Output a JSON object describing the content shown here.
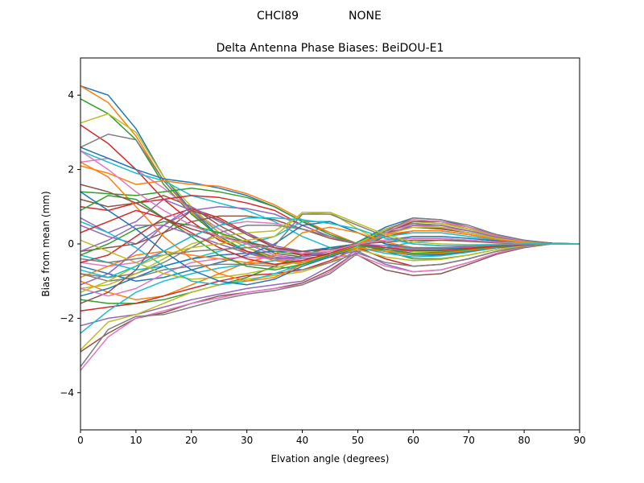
{
  "suptitle": {
    "station": "CHCI89",
    "radome": "NONE"
  },
  "chart_data": {
    "type": "line",
    "title": "Delta Antenna Phase Biases: BeiDOU-E1",
    "xlabel": "Elvation angle (degrees)",
    "ylabel": "Bias from mean (mm)",
    "xlim": [
      0,
      90
    ],
    "ylim": [
      -5,
      5
    ],
    "xticks": [
      0,
      10,
      20,
      30,
      40,
      50,
      60,
      70,
      80,
      90
    ],
    "yticks": [
      -4,
      -2,
      0,
      2,
      4
    ],
    "ytick_labels": [
      "−4",
      "−2",
      "0",
      "2",
      "4"
    ],
    "grid": false,
    "legend": "none",
    "colors": [
      "#1f77b4",
      "#ff7f0e",
      "#2ca02c",
      "#d62728",
      "#9467bd",
      "#8c564b",
      "#e377c2",
      "#7f7f7f",
      "#bcbd22",
      "#17becf"
    ],
    "x": [
      0,
      5,
      10,
      15,
      20,
      25,
      30,
      35,
      40,
      45,
      50,
      55,
      60,
      65,
      70,
      75,
      80,
      85,
      90
    ],
    "series": [
      {
        "values": [
          4.25,
          4.0,
          3.1,
          1.8,
          0.9,
          0.2,
          -0.2,
          -0.4,
          -0.55,
          -0.35,
          0.05,
          0.45,
          0.7,
          0.65,
          0.45,
          0.25,
          0.1,
          0.02,
          0.0
        ]
      },
      {
        "values": [
          4.25,
          3.8,
          2.9,
          1.7,
          0.85,
          0.15,
          -0.25,
          -0.45,
          -0.55,
          -0.35,
          0.0,
          0.4,
          0.65,
          0.6,
          0.4,
          0.22,
          0.08,
          0.02,
          0.0
        ]
      },
      {
        "values": [
          3.9,
          3.5,
          2.8,
          1.6,
          0.8,
          0.2,
          -0.2,
          -0.4,
          -0.5,
          -0.3,
          0.05,
          0.4,
          0.6,
          0.55,
          0.4,
          0.2,
          0.08,
          0.02,
          0.0
        ]
      },
      {
        "values": [
          3.2,
          2.7,
          2.0,
          1.2,
          0.6,
          0.1,
          -0.2,
          -0.35,
          -0.45,
          -0.3,
          0.0,
          0.35,
          0.55,
          0.5,
          0.35,
          0.2,
          0.08,
          0.02,
          0.0
        ]
      },
      {
        "values": [
          0.7,
          0.3,
          0.6,
          1.2,
          0.9,
          0.4,
          0.0,
          -0.3,
          -0.4,
          -0.3,
          0.0,
          0.3,
          0.45,
          0.42,
          0.3,
          0.15,
          0.05,
          0.0,
          0.0
        ]
      },
      {
        "values": [
          1.2,
          1.0,
          1.1,
          1.3,
          1.0,
          0.5,
          0.1,
          -0.25,
          -0.35,
          -0.25,
          0.0,
          0.3,
          0.45,
          0.4,
          0.3,
          0.15,
          0.05,
          0.0,
          0.0
        ]
      },
      {
        "values": [
          2.2,
          2.3,
          2.0,
          1.5,
          0.9,
          0.4,
          0.0,
          -0.3,
          -0.45,
          -0.3,
          0.0,
          0.35,
          0.5,
          0.45,
          0.35,
          0.18,
          0.06,
          0.0,
          0.0
        ]
      },
      {
        "values": [
          2.6,
          2.95,
          2.8,
          1.7,
          0.9,
          0.3,
          -0.1,
          -0.35,
          -0.5,
          -0.3,
          0.0,
          0.35,
          0.55,
          0.5,
          0.35,
          0.2,
          0.07,
          0.0,
          0.0
        ]
      },
      {
        "values": [
          3.25,
          3.5,
          3.0,
          1.8,
          1.0,
          0.3,
          -0.1,
          -0.4,
          -0.55,
          -0.35,
          0.0,
          0.4,
          0.6,
          0.55,
          0.4,
          0.2,
          0.08,
          0.0,
          0.0
        ]
      },
      {
        "values": [
          2.5,
          2.2,
          1.9,
          1.7,
          1.3,
          1.1,
          0.9,
          0.6,
          0.2,
          -0.1,
          -0.2,
          -0.1,
          0.05,
          0.1,
          0.1,
          0.05,
          0.0,
          0.0,
          0.0
        ]
      },
      {
        "values": [
          2.6,
          2.3,
          2.0,
          1.75,
          1.65,
          1.5,
          1.3,
          1.0,
          0.6,
          0.3,
          0.0,
          -0.2,
          -0.3,
          -0.3,
          -0.2,
          -0.1,
          -0.05,
          0.0,
          0.0
        ]
      },
      {
        "values": [
          2.1,
          1.9,
          1.6,
          1.7,
          1.6,
          1.55,
          1.35,
          1.05,
          0.65,
          0.3,
          0.0,
          -0.2,
          -0.3,
          -0.25,
          -0.2,
          -0.1,
          -0.05,
          0.0,
          0.0
        ]
      },
      {
        "values": [
          1.4,
          1.35,
          1.3,
          1.4,
          1.5,
          1.4,
          1.25,
          1.0,
          0.6,
          0.25,
          0.0,
          -0.2,
          -0.25,
          -0.25,
          -0.18,
          -0.1,
          -0.04,
          0.0,
          0.0
        ]
      },
      {
        "values": [
          1.0,
          0.9,
          1.1,
          1.2,
          1.3,
          1.25,
          1.1,
          0.9,
          0.5,
          0.2,
          0.0,
          -0.15,
          -0.2,
          -0.2,
          -0.15,
          -0.08,
          -0.03,
          0.0,
          0.0
        ]
      },
      {
        "values": [
          0.5,
          0.2,
          0.0,
          0.5,
          0.9,
          1.0,
          0.95,
          0.8,
          0.5,
          0.2,
          0.0,
          -0.15,
          -0.2,
          -0.2,
          -0.15,
          -0.08,
          -0.03,
          0.0,
          0.0
        ]
      },
      {
        "values": [
          -0.2,
          -0.1,
          0.0,
          0.3,
          0.6,
          0.75,
          0.75,
          0.65,
          0.4,
          0.15,
          0.0,
          -0.1,
          -0.15,
          -0.15,
          -0.1,
          -0.05,
          -0.02,
          0.0,
          0.0
        ]
      },
      {
        "values": [
          -0.5,
          -0.6,
          -0.5,
          -0.2,
          0.2,
          0.5,
          0.6,
          0.55,
          0.4,
          0.2,
          0.0,
          -0.1,
          -0.15,
          -0.15,
          -0.1,
          -0.05,
          -0.02,
          0.0,
          0.0
        ]
      },
      {
        "values": [
          -0.8,
          -0.9,
          -0.8,
          -0.5,
          -0.1,
          0.3,
          0.5,
          0.5,
          0.4,
          0.2,
          0.0,
          -0.1,
          -0.12,
          -0.12,
          -0.1,
          -0.05,
          -0.02,
          0.0,
          0.0
        ]
      },
      {
        "values": [
          -1.2,
          -1.1,
          -0.8,
          -0.4,
          0.0,
          0.2,
          0.3,
          0.35,
          0.8,
          0.85,
          0.4,
          0.0,
          -0.2,
          -0.2,
          -0.15,
          -0.08,
          -0.03,
          0.0,
          0.0
        ]
      },
      {
        "values": [
          -0.3,
          -0.5,
          -0.7,
          -0.6,
          -0.4,
          -0.2,
          0.0,
          0.2,
          0.6,
          0.6,
          0.3,
          0.0,
          -0.15,
          -0.15,
          -0.1,
          -0.05,
          -0.02,
          0.0,
          0.0
        ]
      },
      {
        "values": [
          -0.6,
          -0.8,
          -1.0,
          -0.9,
          -0.7,
          -0.5,
          -0.3,
          0.0,
          0.5,
          0.6,
          0.3,
          0.0,
          -0.1,
          -0.12,
          -0.1,
          -0.05,
          -0.02,
          0.0,
          0.0
        ]
      },
      {
        "values": [
          -1.0,
          -1.3,
          -1.5,
          -1.4,
          -1.1,
          -0.8,
          -0.5,
          -0.3,
          0.3,
          0.45,
          0.3,
          0.05,
          -0.1,
          -0.1,
          -0.08,
          -0.04,
          -0.02,
          0.0,
          0.0
        ]
      },
      {
        "values": [
          -1.5,
          -1.6,
          -1.6,
          -1.5,
          -1.3,
          -1.1,
          -0.9,
          -0.6,
          -0.3,
          -0.1,
          0.0,
          0.1,
          0.15,
          0.15,
          0.1,
          0.05,
          0.02,
          0.0,
          0.0
        ]
      },
      {
        "values": [
          -1.8,
          -1.7,
          -1.6,
          -1.4,
          -1.2,
          -1.0,
          -0.85,
          -0.8,
          -0.7,
          -0.45,
          -0.1,
          0.2,
          0.35,
          0.35,
          0.25,
          0.12,
          0.04,
          0.0,
          0.0
        ]
      },
      {
        "values": [
          -2.2,
          -2.0,
          -1.9,
          -1.7,
          -1.5,
          -1.35,
          -1.2,
          -1.1,
          -1.0,
          -0.6,
          -0.15,
          0.25,
          0.5,
          0.5,
          0.35,
          0.18,
          0.06,
          0.0,
          0.0
        ]
      },
      {
        "values": [
          -2.9,
          -2.4,
          -2.0,
          -1.85,
          -1.6,
          -1.4,
          -1.3,
          -1.2,
          -1.05,
          -0.7,
          -0.2,
          0.3,
          0.6,
          0.6,
          0.45,
          0.22,
          0.08,
          0.0,
          0.0
        ]
      },
      {
        "values": [
          -3.4,
          -2.5,
          -2.0,
          -1.8,
          -1.6,
          -1.45,
          -1.3,
          -1.2,
          -1.1,
          -0.75,
          -0.2,
          0.3,
          0.65,
          0.6,
          0.45,
          0.22,
          0.08,
          0.0,
          0.0
        ]
      },
      {
        "values": [
          -3.3,
          -2.3,
          -1.95,
          -1.9,
          -1.7,
          -1.5,
          -1.35,
          -1.25,
          -1.1,
          -0.8,
          -0.25,
          0.35,
          0.7,
          0.65,
          0.5,
          0.25,
          0.1,
          0.0,
          0.0
        ]
      },
      {
        "values": [
          -2.85,
          -2.1,
          -1.9,
          -1.6,
          -1.3,
          -1.1,
          -0.95,
          -0.85,
          -0.75,
          -0.5,
          -0.1,
          0.25,
          0.45,
          0.45,
          0.3,
          0.15,
          0.05,
          0.0,
          0.0
        ]
      },
      {
        "values": [
          -2.4,
          -1.8,
          -1.3,
          -1.0,
          -0.8,
          -0.65,
          -0.55,
          -0.45,
          -0.35,
          -0.2,
          0.0,
          0.2,
          0.3,
          0.3,
          0.2,
          0.1,
          0.03,
          0.0,
          0.0
        ]
      },
      {
        "values": [
          -1.4,
          -1.2,
          -0.9,
          -0.6,
          -0.4,
          -0.3,
          -0.25,
          -0.2,
          -0.2,
          -0.1,
          0.0,
          0.1,
          0.2,
          0.2,
          0.15,
          0.08,
          0.02,
          0.0,
          0.0
        ]
      },
      {
        "values": [
          -0.9,
          -0.6,
          -0.3,
          -0.2,
          -0.3,
          -0.4,
          -0.5,
          -0.55,
          -0.5,
          -0.3,
          0.0,
          0.25,
          0.35,
          0.35,
          0.25,
          0.12,
          0.04,
          0.0,
          0.0
        ]
      },
      {
        "values": [
          -0.3,
          0.0,
          0.4,
          0.6,
          0.5,
          0.3,
          0.05,
          -0.2,
          -0.3,
          -0.2,
          0.0,
          -0.2,
          -0.4,
          -0.4,
          -0.3,
          -0.15,
          -0.05,
          0.0,
          0.0
        ]
      },
      {
        "values": [
          -0.5,
          -0.3,
          0.2,
          0.7,
          0.95,
          0.7,
          0.3,
          -0.1,
          -0.3,
          -0.3,
          -0.1,
          -0.4,
          -0.6,
          -0.55,
          -0.4,
          -0.2,
          -0.07,
          0.0,
          0.0
        ]
      },
      {
        "values": [
          -1.1,
          -0.8,
          -0.2,
          0.5,
          1.0,
          0.6,
          0.3,
          -0.05,
          -0.2,
          -0.3,
          -0.2,
          -0.55,
          -0.75,
          -0.7,
          -0.5,
          -0.25,
          -0.08,
          0.0,
          0.0
        ]
      },
      {
        "values": [
          -1.6,
          -1.3,
          -0.7,
          0.3,
          0.9,
          0.65,
          0.25,
          -0.1,
          -0.25,
          -0.35,
          -0.3,
          -0.7,
          -0.85,
          -0.8,
          -0.55,
          -0.28,
          -0.1,
          0.0,
          0.0
        ]
      },
      {
        "values": [
          -1.2,
          -1.4,
          -1.2,
          -0.8,
          -0.5,
          -0.4,
          -0.35,
          -0.4,
          -0.45,
          -0.35,
          -0.3,
          -0.6,
          -0.75,
          -0.7,
          -0.5,
          -0.25,
          -0.08,
          0.0,
          0.0
        ]
      },
      {
        "values": [
          -0.8,
          -1.0,
          -0.9,
          -0.7,
          -0.6,
          -0.55,
          -0.55,
          -0.6,
          -0.7,
          -0.5,
          -0.25,
          -0.5,
          -0.6,
          -0.55,
          -0.4,
          -0.2,
          -0.07,
          0.0,
          0.0
        ]
      },
      {
        "values": [
          0.1,
          -0.2,
          -0.5,
          -0.8,
          -0.95,
          -0.9,
          -0.8,
          -0.65,
          -0.45,
          -0.3,
          -0.15,
          -0.35,
          -0.45,
          -0.42,
          -0.3,
          -0.15,
          -0.05,
          0.0,
          0.0
        ]
      },
      {
        "values": [
          0.6,
          0.3,
          -0.1,
          -0.6,
          -1.0,
          -1.1,
          -1.0,
          -0.8,
          -0.55,
          -0.35,
          -0.1,
          -0.25,
          -0.35,
          -0.32,
          -0.22,
          -0.1,
          -0.03,
          0.0,
          0.0
        ]
      },
      {
        "values": [
          1.4,
          0.9,
          0.4,
          -0.2,
          -0.7,
          -1.0,
          -1.1,
          -0.95,
          -0.6,
          -0.35,
          -0.1,
          -0.2,
          -0.3,
          -0.28,
          -0.2,
          -0.1,
          -0.03,
          0.0,
          0.0
        ]
      },
      {
        "values": [
          2.2,
          1.8,
          1.0,
          0.2,
          -0.4,
          -0.8,
          -1.0,
          -0.9,
          -0.55,
          -0.3,
          -0.1,
          -0.2,
          -0.28,
          -0.25,
          -0.18,
          -0.08,
          -0.02,
          0.0,
          0.0
        ]
      },
      {
        "values": [
          0.9,
          1.3,
          1.2,
          0.7,
          0.2,
          -0.3,
          -0.6,
          -0.7,
          -0.55,
          -0.3,
          -0.05,
          -0.15,
          -0.25,
          -0.22,
          -0.15,
          -0.07,
          -0.02,
          0.0,
          0.0
        ]
      },
      {
        "values": [
          0.3,
          0.6,
          0.9,
          0.7,
          0.3,
          -0.1,
          -0.4,
          -0.55,
          -0.45,
          -0.25,
          0.0,
          -0.1,
          -0.18,
          -0.18,
          -0.12,
          -0.06,
          -0.02,
          0.0,
          0.0
        ]
      },
      {
        "values": [
          -0.2,
          0.1,
          0.5,
          0.5,
          0.25,
          0.0,
          -0.25,
          -0.4,
          -0.35,
          -0.2,
          0.0,
          -0.05,
          -0.1,
          -0.1,
          -0.07,
          -0.03,
          -0.01,
          0.0,
          0.0
        ]
      },
      {
        "values": [
          1.6,
          1.4,
          1.1,
          0.7,
          0.4,
          0.2,
          0.05,
          -0.1,
          -0.2,
          -0.15,
          0.0,
          0.05,
          0.1,
          0.1,
          0.07,
          0.03,
          0.01,
          0.0,
          0.0
        ]
      },
      {
        "values": [
          2.5,
          2.0,
          1.4,
          0.9,
          0.5,
          0.2,
          0.0,
          -0.15,
          -0.25,
          -0.2,
          0.0,
          0.1,
          0.15,
          0.15,
          0.1,
          0.05,
          0.02,
          0.0,
          0.0
        ]
      },
      {
        "values": [
          -0.4,
          -0.5,
          -0.4,
          -0.3,
          -0.2,
          -0.15,
          -0.1,
          -0.05,
          0.8,
          0.8,
          0.5,
          0.2,
          0.0,
          -0.05,
          -0.05,
          -0.02,
          0.0,
          0.0,
          0.0
        ]
      },
      {
        "values": [
          -1.3,
          -1.0,
          -0.6,
          -0.3,
          -0.1,
          0.0,
          0.1,
          0.2,
          0.85,
          0.85,
          0.55,
          0.25,
          0.05,
          0.0,
          -0.02,
          -0.01,
          0.0,
          0.0,
          0.0
        ]
      },
      {
        "values": [
          -0.7,
          -0.9,
          -0.6,
          -0.2,
          0.2,
          0.5,
          0.7,
          0.7,
          0.65,
          0.55,
          0.4,
          0.15,
          0.0,
          -0.05,
          -0.05,
          -0.02,
          0.0,
          0.0,
          0.0
        ]
      }
    ]
  }
}
